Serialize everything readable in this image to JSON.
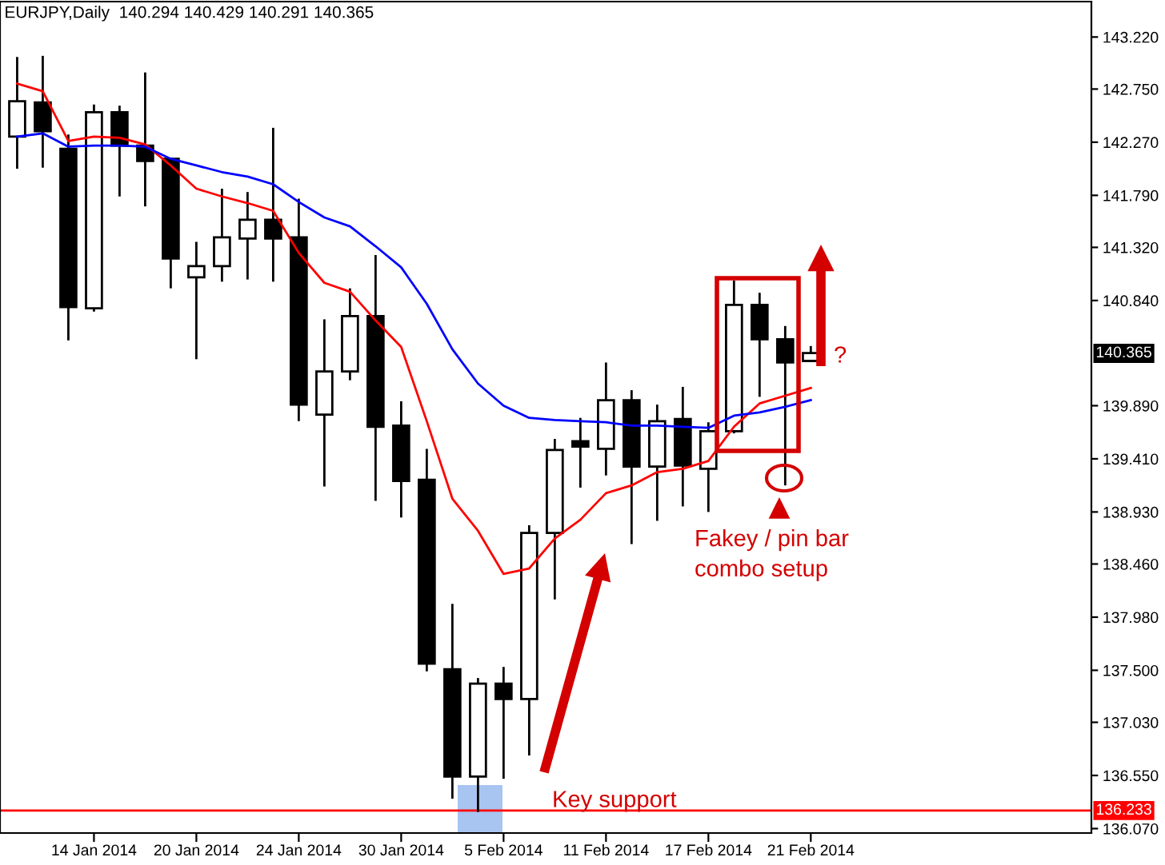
{
  "chart_data": {
    "type": "candlestick",
    "title": "EURJPY,Daily  140.294 140.429 140.291 140.365",
    "categories": [
      null,
      null,
      null,
      "14 Jan 2014",
      null,
      null,
      null,
      "20 Jan 2014",
      null,
      null,
      null,
      "24 Jan 2014",
      null,
      null,
      null,
      "30 Jan 2014",
      null,
      null,
      null,
      "5 Feb 2014",
      null,
      null,
      null,
      "11 Feb 2014",
      null,
      null,
      null,
      "17 Feb 2014",
      null,
      null,
      null,
      "21 Feb 2014"
    ],
    "ohlc": [
      [
        142.32,
        143.04,
        142.03,
        142.64
      ],
      [
        142.63,
        143.05,
        142.04,
        142.37
      ],
      [
        142.21,
        142.34,
        140.48,
        140.78
      ],
      [
        140.77,
        142.61,
        140.74,
        142.54
      ],
      [
        142.54,
        142.6,
        141.78,
        142.24
      ],
      [
        142.24,
        142.9,
        141.69,
        142.1
      ],
      [
        142.12,
        142.13,
        140.95,
        141.22
      ],
      [
        141.05,
        141.37,
        140.31,
        141.15
      ],
      [
        141.15,
        141.85,
        141.01,
        141.41
      ],
      [
        141.4,
        141.82,
        141.03,
        141.57
      ],
      [
        141.57,
        142.4,
        141.01,
        141.4
      ],
      [
        141.41,
        141.76,
        139.75,
        139.9
      ],
      [
        139.81,
        140.67,
        139.16,
        140.2
      ],
      [
        140.2,
        140.95,
        140.12,
        140.7
      ],
      [
        140.7,
        141.25,
        139.03,
        139.7
      ],
      [
        139.71,
        139.93,
        138.88,
        139.21
      ],
      [
        139.22,
        139.5,
        137.49,
        137.56
      ],
      [
        137.51,
        138.1,
        136.34,
        136.54
      ],
      [
        136.54,
        137.43,
        136.22,
        137.38
      ],
      [
        137.38,
        137.53,
        136.52,
        137.24
      ],
      [
        137.24,
        138.81,
        136.73,
        138.74
      ],
      [
        138.74,
        139.59,
        138.14,
        139.49
      ],
      [
        139.57,
        139.78,
        139.15,
        139.52
      ],
      [
        139.5,
        140.28,
        139.26,
        139.94
      ],
      [
        139.94,
        140.03,
        138.64,
        139.34
      ],
      [
        139.34,
        139.9,
        138.85,
        139.75
      ],
      [
        139.77,
        140.06,
        138.98,
        139.35
      ],
      [
        139.32,
        139.74,
        138.93,
        139.66
      ],
      [
        139.66,
        141.02,
        139.64,
        140.8
      ],
      [
        140.8,
        140.91,
        139.97,
        140.49
      ],
      [
        140.49,
        140.61,
        139.17,
        140.28
      ],
      [
        140.294,
        140.429,
        140.291,
        140.365
      ]
    ],
    "series": [
      {
        "type": "line",
        "color": "#ff0000",
        "values": [
          142.8,
          142.73,
          142.28,
          142.32,
          142.31,
          142.25,
          142.06,
          141.85,
          141.78,
          141.72,
          141.65,
          141.27,
          141.0,
          140.92,
          140.66,
          140.42,
          139.75,
          139.05,
          138.76,
          138.37,
          138.42,
          138.69,
          138.86,
          139.1,
          139.17,
          139.29,
          139.32,
          139.39,
          139.7,
          139.91,
          139.98,
          140.05
        ]
      },
      {
        "type": "line",
        "color": "#0000ff",
        "values": [
          142.32,
          142.35,
          142.23,
          142.24,
          142.24,
          142.23,
          142.12,
          142.06,
          142.0,
          141.96,
          141.89,
          141.73,
          141.59,
          141.51,
          141.33,
          141.14,
          140.81,
          140.4,
          140.09,
          139.89,
          139.78,
          139.76,
          139.75,
          139.74,
          139.71,
          139.71,
          139.7,
          139.69,
          139.8,
          139.83,
          139.88,
          139.94
        ]
      }
    ],
    "ylim": [
      136.03,
      143.54
    ],
    "yticks": [
      {
        "value": 136.07,
        "label": "136.070"
      },
      {
        "value": 136.55,
        "label": "136.550"
      },
      {
        "value": 137.03,
        "label": "137.030"
      },
      {
        "value": 137.5,
        "label": "137.500"
      },
      {
        "value": 137.98,
        "label": "137.980"
      },
      {
        "value": 138.46,
        "label": "138.460"
      },
      {
        "value": 138.93,
        "label": "138.930"
      },
      {
        "value": 139.41,
        "label": "139.410"
      },
      {
        "value": 139.89,
        "label": "139.890"
      },
      {
        "value": 140.84,
        "label": "140.840"
      },
      {
        "value": 141.32,
        "label": "141.320"
      },
      {
        "value": 141.79,
        "label": "141.790"
      },
      {
        "value": 142.27,
        "label": "142.270"
      },
      {
        "value": 142.75,
        "label": "142.750"
      },
      {
        "value": 143.22,
        "label": "143.220"
      }
    ],
    "ref_lines": [
      {
        "axis": "y",
        "value": 136.233,
        "label": "136.233",
        "color": "#ff0000",
        "line_style": "solid"
      }
    ],
    "annotations": [
      "Fakey / pin bar\ncombo setup",
      "Key support",
      "?",
      "140.365"
    ],
    "grid": false,
    "legend": false
  }
}
